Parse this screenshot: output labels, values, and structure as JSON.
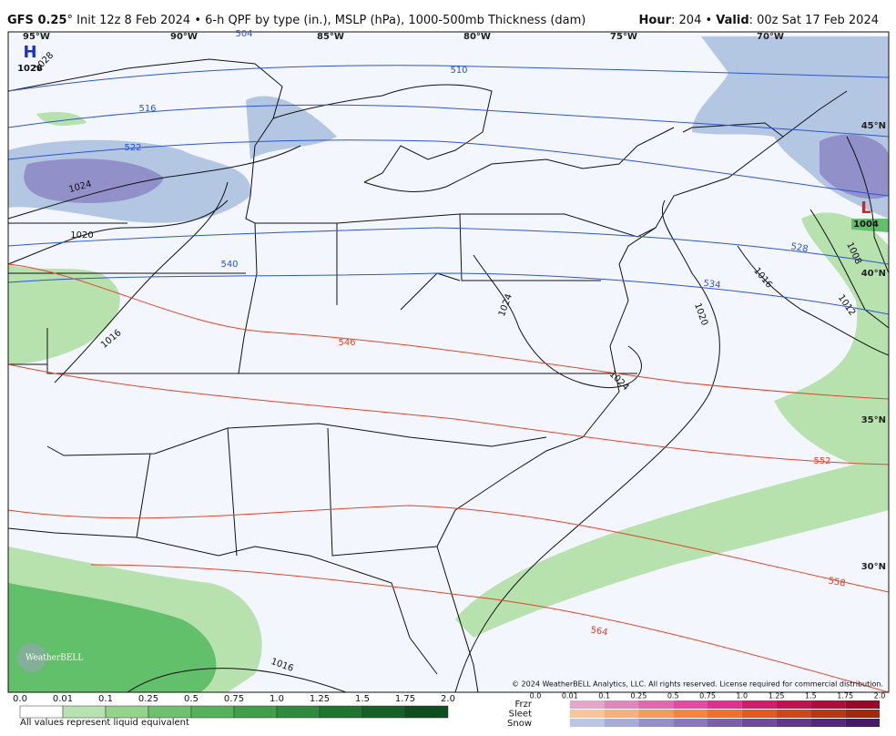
{
  "header": {
    "model": "GFS 0.25",
    "description": "° Init 12z 8 Feb 2024 • 6-h QPF by type (in.), MSLP (hPa), 1000-500mb Thickness (dam)",
    "hour_label": "Hour",
    "hour_value": ": 204 • ",
    "valid_label": "Valid",
    "valid_value": ": 00z Sat 17 Feb 2024"
  },
  "map": {
    "longitudes": [
      "95°W",
      "90°W",
      "85°W",
      "80°W",
      "75°W",
      "70°W"
    ],
    "latitudes": [
      "45°N",
      "40°N",
      "35°N",
      "30°N"
    ],
    "high": {
      "symbol": "H",
      "pressure": "1028"
    },
    "low": {
      "symbol": "L",
      "pressure": "1004"
    },
    "isobar_labels": [
      "1028",
      "1024",
      "1020",
      "1016",
      "1016",
      "1024",
      "1020",
      "1024",
      "1016",
      "1012",
      "1008"
    ],
    "thickness_labels_blue": [
      "504",
      "510",
      "516",
      "522",
      "528",
      "534",
      "540"
    ],
    "thickness_labels_red": [
      "546",
      "552",
      "558",
      "564"
    ],
    "logo": "WeatherBELL",
    "copyright": "© 2024 WeatherBELL Analytics, LLC. All rights reserved. License required for commercial distribution."
  },
  "legend": {
    "rain_ticks": [
      "0.0",
      "0.01",
      "0.1",
      "0.25",
      "0.5",
      "0.75",
      "1.0",
      "1.25",
      "1.5",
      "1.75",
      "2.0"
    ],
    "type_labels": [
      "Frzr",
      "Sleet",
      "Snow"
    ],
    "type_ticks": [
      "0.0",
      "0.01",
      "0.1",
      "0.25",
      "0.5",
      "0.75",
      "1.0",
      "1.25",
      "1.5",
      "1.75",
      "2.0"
    ],
    "note": "All values represent liquid equivalent"
  }
}
